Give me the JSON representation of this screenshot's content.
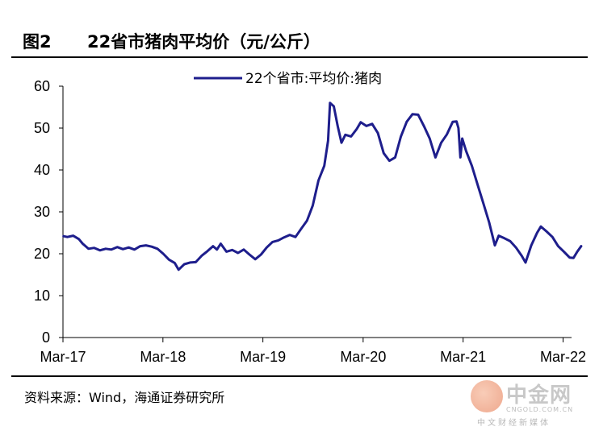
{
  "figure": {
    "label": "图2",
    "title": "22省市猪肉平均价（元/公斤）"
  },
  "source_note": "资料来源：Wind，海通证券研究所",
  "watermark": {
    "name": "中金网",
    "url": "CNGOLD.COM.CN",
    "tagline": "中文财经新媒体"
  },
  "chart_data": {
    "type": "line",
    "title": "22省市猪肉平均价（元/公斤）",
    "xlabel": "",
    "ylabel": "",
    "ylim": [
      0,
      60
    ],
    "yticks": [
      0,
      10,
      20,
      30,
      40,
      50,
      60
    ],
    "xtick_labels": [
      "Mar-17",
      "Mar-18",
      "Mar-19",
      "Mar-20",
      "Mar-21",
      "Mar-22"
    ],
    "x_range": [
      "2017-03-01",
      "2022-04-01"
    ],
    "grid": false,
    "legend_position": "top",
    "series": [
      {
        "name": "22个省市:平均价:猪肉",
        "color": "#1e1e8c",
        "points": [
          [
            "2017-03-03",
            24.2
          ],
          [
            "2017-03-17",
            24.0
          ],
          [
            "2017-04-07",
            24.3
          ],
          [
            "2017-04-28",
            23.5
          ],
          [
            "2017-05-12",
            22.4
          ],
          [
            "2017-06-02",
            21.2
          ],
          [
            "2017-06-23",
            21.4
          ],
          [
            "2017-07-14",
            20.8
          ],
          [
            "2017-08-04",
            21.2
          ],
          [
            "2017-08-25",
            21.0
          ],
          [
            "2017-09-15",
            21.6
          ],
          [
            "2017-10-06",
            21.1
          ],
          [
            "2017-10-27",
            21.5
          ],
          [
            "2017-11-17",
            21.0
          ],
          [
            "2017-12-08",
            21.8
          ],
          [
            "2017-12-29",
            22.0
          ],
          [
            "2018-01-19",
            21.7
          ],
          [
            "2018-02-09",
            21.2
          ],
          [
            "2018-03-02",
            20.0
          ],
          [
            "2018-03-23",
            18.6
          ],
          [
            "2018-04-13",
            17.8
          ],
          [
            "2018-04-27",
            16.2
          ],
          [
            "2018-05-18",
            17.5
          ],
          [
            "2018-06-08",
            17.9
          ],
          [
            "2018-06-29",
            18.0
          ],
          [
            "2018-07-20",
            19.5
          ],
          [
            "2018-08-10",
            20.6
          ],
          [
            "2018-08-31",
            21.8
          ],
          [
            "2018-09-14",
            21.0
          ],
          [
            "2018-09-28",
            22.4
          ],
          [
            "2018-10-19",
            20.5
          ],
          [
            "2018-11-09",
            20.9
          ],
          [
            "2018-11-30",
            20.2
          ],
          [
            "2018-12-21",
            21.0
          ],
          [
            "2019-01-11",
            19.8
          ],
          [
            "2019-02-01",
            18.7
          ],
          [
            "2019-02-22",
            19.8
          ],
          [
            "2019-03-15",
            21.5
          ],
          [
            "2019-04-05",
            22.8
          ],
          [
            "2019-04-26",
            23.2
          ],
          [
            "2019-05-17",
            23.9
          ],
          [
            "2019-06-07",
            24.5
          ],
          [
            "2019-06-28",
            24.0
          ],
          [
            "2019-07-19",
            26.0
          ],
          [
            "2019-08-09",
            27.9
          ],
          [
            "2019-08-30",
            31.5
          ],
          [
            "2019-09-20",
            37.5
          ],
          [
            "2019-10-11",
            41.0
          ],
          [
            "2019-10-25",
            47.0
          ],
          [
            "2019-11-01",
            56.0
          ],
          [
            "2019-11-15",
            55.2
          ],
          [
            "2019-11-29",
            50.5
          ],
          [
            "2019-12-13",
            46.5
          ],
          [
            "2019-12-27",
            48.4
          ],
          [
            "2020-01-17",
            48.0
          ],
          [
            "2020-02-07",
            49.8
          ],
          [
            "2020-02-21",
            51.4
          ],
          [
            "2020-03-13",
            50.5
          ],
          [
            "2020-04-03",
            51.0
          ],
          [
            "2020-04-24",
            48.8
          ],
          [
            "2020-05-15",
            44.0
          ],
          [
            "2020-06-05",
            42.2
          ],
          [
            "2020-06-26",
            43.0
          ],
          [
            "2020-07-17",
            48.0
          ],
          [
            "2020-08-07",
            51.5
          ],
          [
            "2020-08-28",
            53.3
          ],
          [
            "2020-09-18",
            53.2
          ],
          [
            "2020-10-09",
            50.5
          ],
          [
            "2020-10-30",
            47.5
          ],
          [
            "2020-11-20",
            43.0
          ],
          [
            "2020-12-11",
            46.5
          ],
          [
            "2021-01-01",
            48.5
          ],
          [
            "2021-01-22",
            51.5
          ],
          [
            "2021-02-05",
            51.6
          ],
          [
            "2021-02-12",
            50.0
          ],
          [
            "2021-02-19",
            43.0
          ],
          [
            "2021-02-26",
            47.5
          ],
          [
            "2021-03-12",
            44.5
          ],
          [
            "2021-04-02",
            41.0
          ],
          [
            "2021-04-23",
            36.5
          ],
          [
            "2021-05-14",
            32.0
          ],
          [
            "2021-06-04",
            27.5
          ],
          [
            "2021-06-25",
            22.0
          ],
          [
            "2021-07-09",
            24.3
          ],
          [
            "2021-07-30",
            23.7
          ],
          [
            "2021-08-20",
            23.0
          ],
          [
            "2021-09-10",
            21.5
          ],
          [
            "2021-10-01",
            19.5
          ],
          [
            "2021-10-15",
            17.9
          ],
          [
            "2021-11-05",
            22.0
          ],
          [
            "2021-11-26",
            25.0
          ],
          [
            "2021-12-10",
            26.5
          ],
          [
            "2021-12-31",
            25.3
          ],
          [
            "2022-01-21",
            24.0
          ],
          [
            "2022-02-11",
            21.8
          ],
          [
            "2022-03-04",
            20.5
          ],
          [
            "2022-03-25",
            19.1
          ],
          [
            "2022-04-08",
            19.0
          ],
          [
            "2022-04-22",
            20.5
          ],
          [
            "2022-05-06",
            21.8
          ]
        ]
      }
    ]
  }
}
